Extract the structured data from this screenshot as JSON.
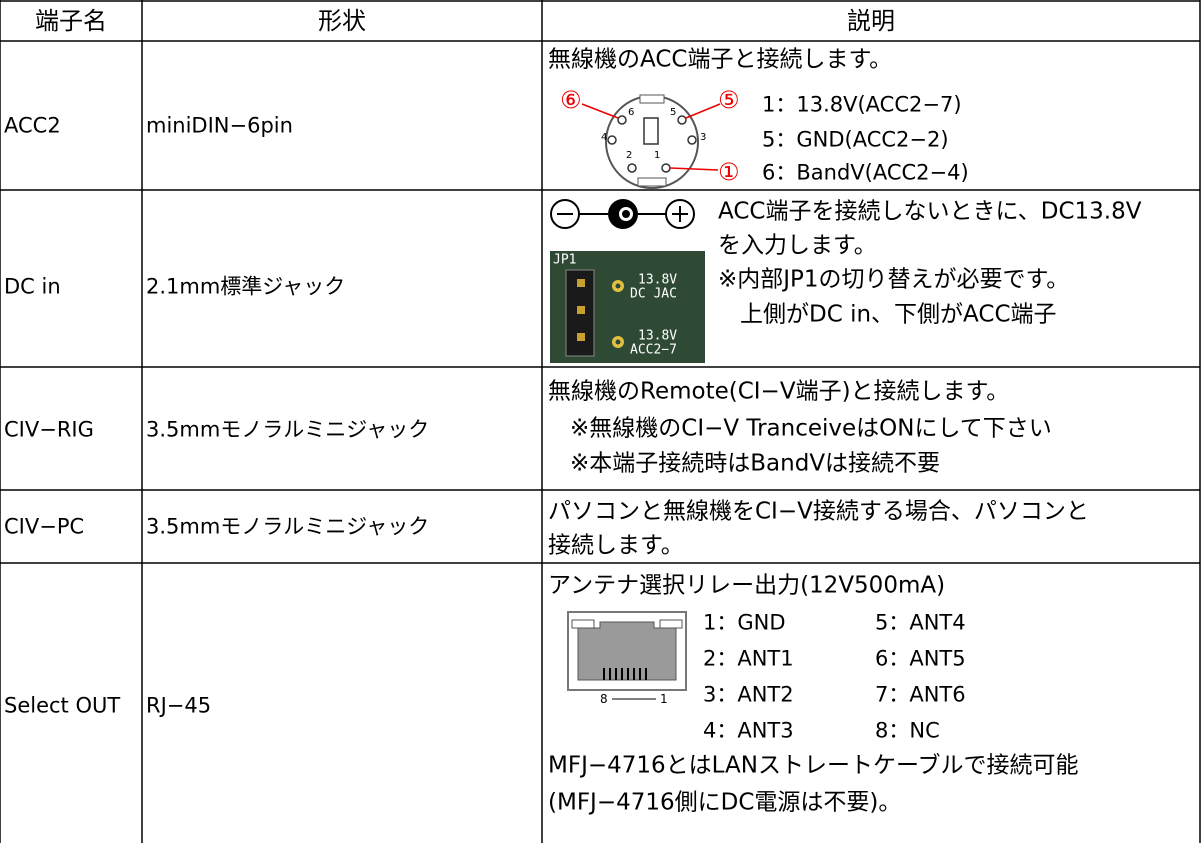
{
  "table": {
    "headers": [
      "端子名",
      "形状",
      "説明"
    ],
    "rows": [
      {
        "terminal": "ACC2",
        "shape": "miniDIN−6pin",
        "description": [
          "無線機のACC端子と接続します。"
        ],
        "pins": [
          "1：13.8V(ACC2−7)",
          "5：GND(ACC2−2)",
          "6：BandV(ACC2−4)"
        ],
        "diagram": {
          "callouts": [
            "⑥",
            "⑤",
            "①"
          ],
          "pin_numbers": [
            "6",
            "5",
            "4",
            "3",
            "2",
            "1"
          ]
        }
      },
      {
        "terminal": "DC in",
        "shape": "2.1mm標準ジャック",
        "description": [
          "ACC端子を接続しないときに、DC13.8V",
          "を入力します。",
          "※内部JP1の切り替えが必要です。",
          "上側がDC in、下側がACC端子"
        ],
        "board": [
          "JP1",
          "13.8V",
          "DC JAC",
          "13.8V",
          "ACC2−7"
        ]
      },
      {
        "terminal": "CIV−RIG",
        "shape": "3.5mmモノラルミニジャック",
        "description": [
          "無線機のRemote(CI−V端子)と接続します。",
          "※無線機のCI−V TranceiveはONにして下さい",
          "※本端子接続時はBandVは接続不要"
        ]
      },
      {
        "terminal": "CIV−PC",
        "shape": "3.5mmモノラルミニジャック",
        "description": [
          "パソコンと無線機をCI−V接続する場合、パソコンと",
          "接続します。"
        ]
      },
      {
        "terminal": "Select OUT",
        "shape": "RJ−45",
        "description": [
          "アンテナ選択リレー出力(12V500mA)"
        ],
        "pins": [
          "1：GND",
          "5：ANT4",
          "2：ANT1",
          "6：ANT5",
          "3：ANT2",
          "7：ANT6",
          "4：ANT3",
          "8：NC"
        ],
        "connector_labels": [
          "8",
          "1"
        ],
        "footer": [
          "MFJ−4716とはLANストレートケーブルで接続可能",
          "(MFJ−4716側にDC電源は不要)。"
        ]
      }
    ]
  }
}
